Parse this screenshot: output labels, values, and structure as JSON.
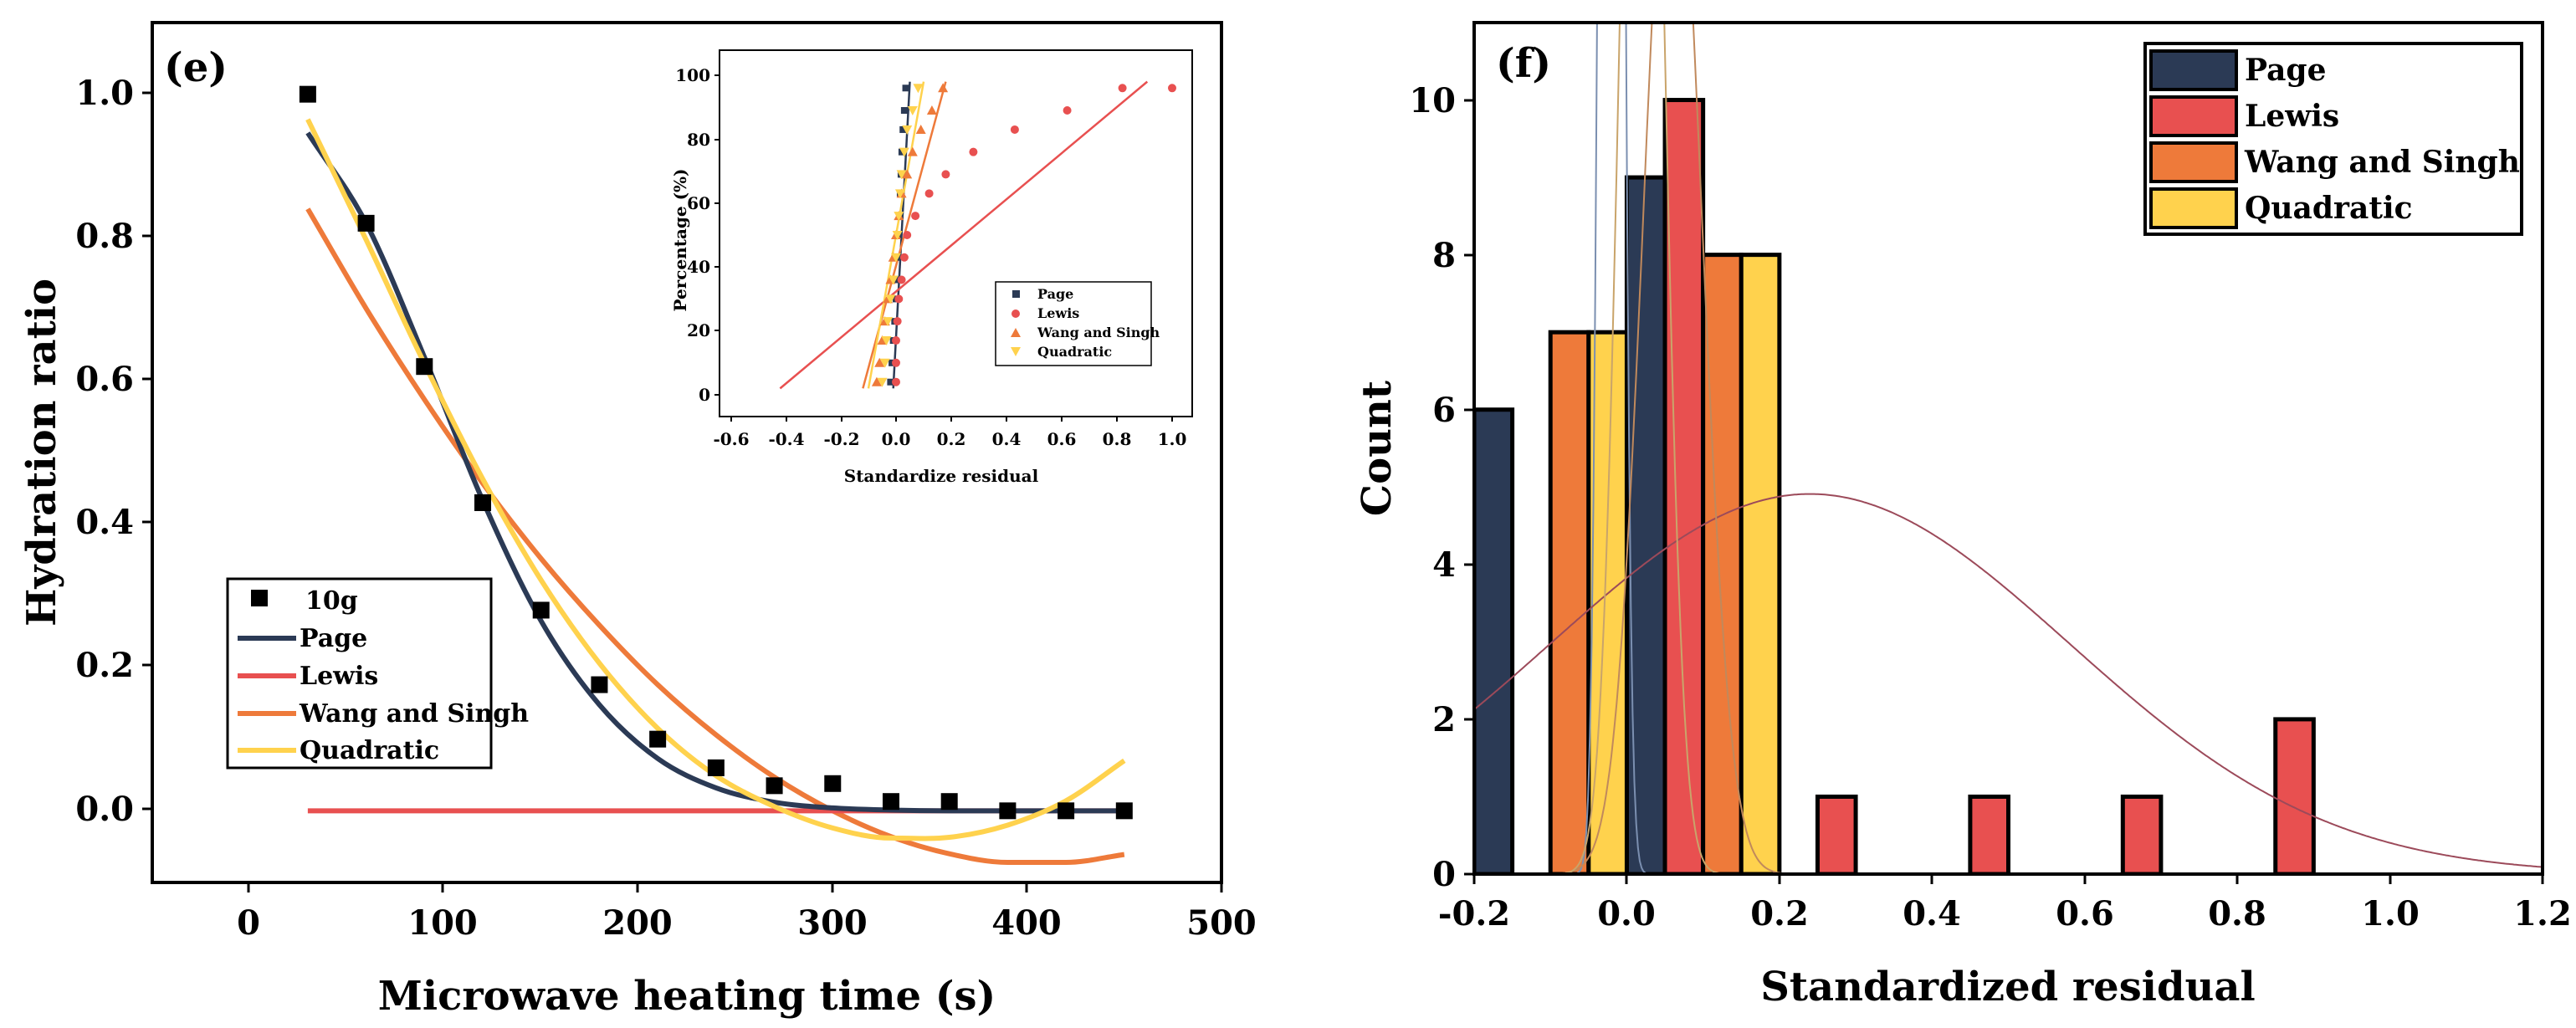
{
  "charts": {
    "e": {
      "type": "scatter",
      "panel_label": "(e)",
      "xlabel": "Microwave heating time (s)",
      "ylabel": "Hydration ratio",
      "xlim": [
        -50,
        500
      ],
      "ylim": [
        -0.1,
        1.1
      ],
      "xticks": [
        0,
        100,
        200,
        300,
        400,
        500
      ],
      "yticks": [
        0.0,
        0.2,
        0.4,
        0.6,
        0.8,
        1.0
      ],
      "xtick_labels": [
        "0",
        "100",
        "200",
        "300",
        "400",
        "500"
      ],
      "ytick_labels": [
        "0.0",
        "0.2",
        "0.4",
        "0.6",
        "0.8",
        "1.0"
      ],
      "legend_position": "lower-left",
      "points": {
        "name": "10g",
        "x": [
          30,
          60,
          90,
          120,
          150,
          180,
          210,
          240,
          270,
          300,
          330,
          360,
          390,
          420,
          450
        ],
        "y": [
          1.0,
          0.82,
          0.62,
          0.43,
          0.28,
          0.176,
          0.1,
          0.06,
          0.035,
          0.038,
          0.013,
          0.013,
          0.0,
          0.0,
          0.0
        ]
      },
      "series": [
        {
          "name": "Page",
          "color": "#2B3A55",
          "x": [
            30,
            60,
            90,
            120,
            150,
            180,
            210,
            240,
            270,
            300,
            330,
            360,
            390,
            420,
            450
          ],
          "y": [
            0.946,
            0.82,
            0.633,
            0.433,
            0.265,
            0.148,
            0.073,
            0.032,
            0.012,
            0.004,
            0.001,
            0.0,
            0.0,
            0.0,
            0.0
          ]
        },
        {
          "name": "Lewis",
          "color": "#E85050",
          "x": [
            30,
            450
          ],
          "y": [
            0.0,
            0.0
          ]
        },
        {
          "name": "Wang and Singh",
          "color": "#EE7A3A",
          "x": [
            30,
            60,
            90,
            120,
            150,
            180,
            210,
            240,
            270,
            300,
            330,
            360,
            390,
            420,
            450
          ],
          "y": [
            0.84,
            0.701,
            0.574,
            0.457,
            0.352,
            0.259,
            0.176,
            0.106,
            0.047,
            0.0,
            -0.036,
            -0.06,
            -0.072,
            -0.072,
            -0.061
          ]
        },
        {
          "name": "Quadratic",
          "color": "#FFD24D",
          "x": [
            30,
            60,
            90,
            120,
            150,
            180,
            210,
            240,
            270,
            300,
            330,
            360,
            390,
            420,
            450
          ],
          "y": [
            0.965,
            0.797,
            0.624,
            0.463,
            0.322,
            0.206,
            0.115,
            0.049,
            0.006,
            -0.024,
            -0.038,
            -0.037,
            -0.02,
            0.014,
            0.07
          ]
        }
      ]
    },
    "inset": {
      "type": "line",
      "xlabel": "Standardize residual",
      "ylabel": "Percentage (%)",
      "xlim": [
        -0.6,
        1.1
      ],
      "ylim": [
        -10,
        105
      ],
      "xticks": [
        -0.6,
        -0.4,
        -0.2,
        0.0,
        0.2,
        0.4,
        0.6,
        0.8,
        1.0
      ],
      "yticks": [
        0,
        20,
        40,
        60,
        80,
        100
      ],
      "xtick_labels": [
        "-0.6",
        "-0.4",
        "-0.2",
        "0.0",
        "0.2",
        "0.4",
        "0.6",
        "0.8",
        "1.0"
      ],
      "ytick_labels": [
        "0",
        "20",
        "40",
        "60",
        "80",
        "100"
      ],
      "legend_position": "lower-right",
      "series": [
        {
          "name": "Page",
          "color": "#2B3A55",
          "marker": "square",
          "x": [
            -0.02,
            -0.015,
            -0.01,
            -0.005,
            0.0,
            0.003,
            0.006,
            0.009,
            0.012,
            0.015,
            0.018,
            0.021,
            0.025,
            0.03,
            0.035
          ],
          "y": [
            4,
            10,
            17,
            23,
            30,
            36,
            43,
            50,
            56,
            63,
            69,
            76,
            83,
            89,
            96
          ],
          "fit_x": [
            -0.01,
            0.05
          ],
          "fit_y": [
            2,
            98
          ]
        },
        {
          "name": "Lewis",
          "color": "#E85050",
          "marker": "circle",
          "x": [
            0.0,
            0.0,
            0.0,
            0.005,
            0.01,
            0.02,
            0.03,
            0.04,
            0.07,
            0.12,
            0.18,
            0.28,
            0.43,
            0.62,
            0.82,
            1.0
          ],
          "y": [
            4,
            10,
            17,
            23,
            30,
            36,
            43,
            50,
            56,
            63,
            69,
            76,
            83,
            89,
            96,
            96
          ],
          "fit_x": [
            -0.42,
            0.91
          ],
          "fit_y": [
            2,
            98
          ]
        },
        {
          "name": "Wang and Singh",
          "color": "#EE7A3A",
          "marker": "triangle-up",
          "x": [
            -0.07,
            -0.06,
            -0.05,
            -0.04,
            -0.03,
            -0.02,
            -0.01,
            0.0,
            0.01,
            0.02,
            0.04,
            0.06,
            0.09,
            0.13,
            0.17
          ],
          "y": [
            4,
            10,
            17,
            23,
            30,
            36,
            43,
            50,
            56,
            63,
            69,
            76,
            83,
            89,
            96
          ],
          "fit_x": [
            -0.12,
            0.18
          ],
          "fit_y": [
            2,
            98
          ]
        },
        {
          "name": "Quadratic",
          "color": "#FFD24D",
          "marker": "triangle-down",
          "x": [
            -0.05,
            -0.04,
            -0.035,
            -0.03,
            -0.02,
            -0.01,
            0.0,
            0.005,
            0.01,
            0.015,
            0.02,
            0.03,
            0.04,
            0.06,
            0.08
          ],
          "y": [
            4,
            10,
            17,
            23,
            30,
            36,
            43,
            50,
            56,
            63,
            69,
            76,
            83,
            89,
            96
          ],
          "fit_x": [
            -0.1,
            0.1
          ],
          "fit_y": [
            2,
            98
          ]
        }
      ]
    },
    "f": {
      "type": "bar",
      "panel_label": "(f)",
      "xlabel": "Standardized residual",
      "ylabel": "Count",
      "xlim": [
        -0.2,
        1.2
      ],
      "ylim": [
        0,
        11
      ],
      "xticks": [
        -0.2,
        0.0,
        0.2,
        0.4,
        0.6,
        0.8,
        1.0,
        1.2
      ],
      "yticks": [
        0,
        2,
        4,
        6,
        8,
        10
      ],
      "xtick_labels": [
        "-0.2",
        "0.0",
        "0.2",
        "0.4",
        "0.6",
        "0.8",
        "1.0",
        "1.2"
      ],
      "ytick_labels": [
        "0",
        "2",
        "4",
        "6",
        "8",
        "10"
      ],
      "legend_position": "top-right",
      "series": [
        {
          "name": "Page",
          "color": "#2B3A55",
          "bins": [
            [
              -0.2,
              -0.15,
              6
            ],
            [
              0.0,
              0.05,
              9
            ]
          ],
          "curve": {
            "mean": -0.02,
            "sd": 0.011,
            "scale": 1,
            "color": "#7B8FB0"
          }
        },
        {
          "name": "Lewis",
          "color": "#E85050",
          "bins": [
            [
              0.05,
              0.1,
              10
            ],
            [
              0.25,
              0.3,
              1
            ],
            [
              0.45,
              0.5,
              1
            ],
            [
              0.65,
              0.7,
              1
            ],
            [
              0.85,
              0.9,
              2
            ]
          ],
          "curve": {
            "mean": 0.24,
            "sd": 0.34,
            "scale": 3.1,
            "color": "#9C4A5A"
          }
        },
        {
          "name": "Wang and Singh",
          "color": "#EE7A3A",
          "bins": [
            [
              -0.1,
              -0.05,
              7
            ],
            [
              0.1,
              0.15,
              8
            ]
          ],
          "curve": {
            "mean": 0.06,
            "sd": 0.038,
            "scale": 1,
            "color": "#C0895C"
          }
        },
        {
          "name": "Quadratic",
          "color": "#FFD24D",
          "bins": [
            [
              -0.05,
              0.0,
              7
            ],
            [
              0.15,
              0.2,
              8
            ]
          ],
          "curve": {
            "mean": 0.02,
            "sd": 0.026,
            "scale": 1,
            "color": "#C9A46A"
          }
        }
      ]
    }
  }
}
